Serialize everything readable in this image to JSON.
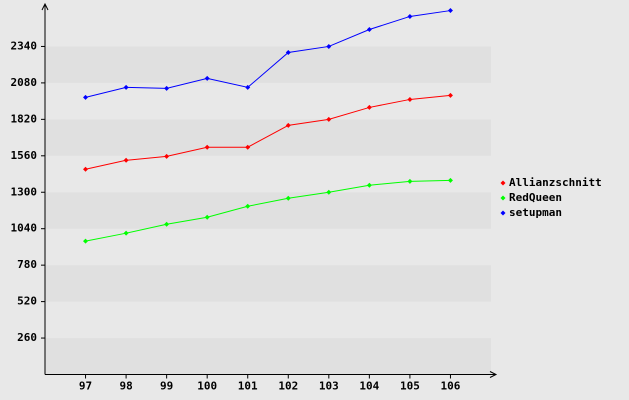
{
  "chart_data": {
    "type": "line",
    "categories": [
      "97",
      "98",
      "99",
      "100",
      "101",
      "102",
      "103",
      "104",
      "105",
      "106"
    ],
    "series": [
      {
        "name": "Allianzschnitt",
        "color": "#ff0000",
        "values": [
          1464,
          1528,
          1556,
          1621,
          1621,
          1777,
          1820,
          1905,
          1962,
          1991
        ]
      },
      {
        "name": "RedQueen",
        "color": "#00ff00",
        "values": [
          951,
          1008,
          1072,
          1122,
          1200,
          1257,
          1300,
          1350,
          1378,
          1385
        ]
      },
      {
        "name": "setupman",
        "color": "#0000ff",
        "values": [
          1977,
          2048,
          2041,
          2112,
          2048,
          2297,
          2340,
          2461,
          2554,
          2596
        ]
      }
    ],
    "ylim": [
      0,
      2600
    ],
    "yticks": [
      260,
      520,
      780,
      1040,
      1300,
      1560,
      1820,
      2080,
      2340
    ],
    "legend": "right"
  }
}
